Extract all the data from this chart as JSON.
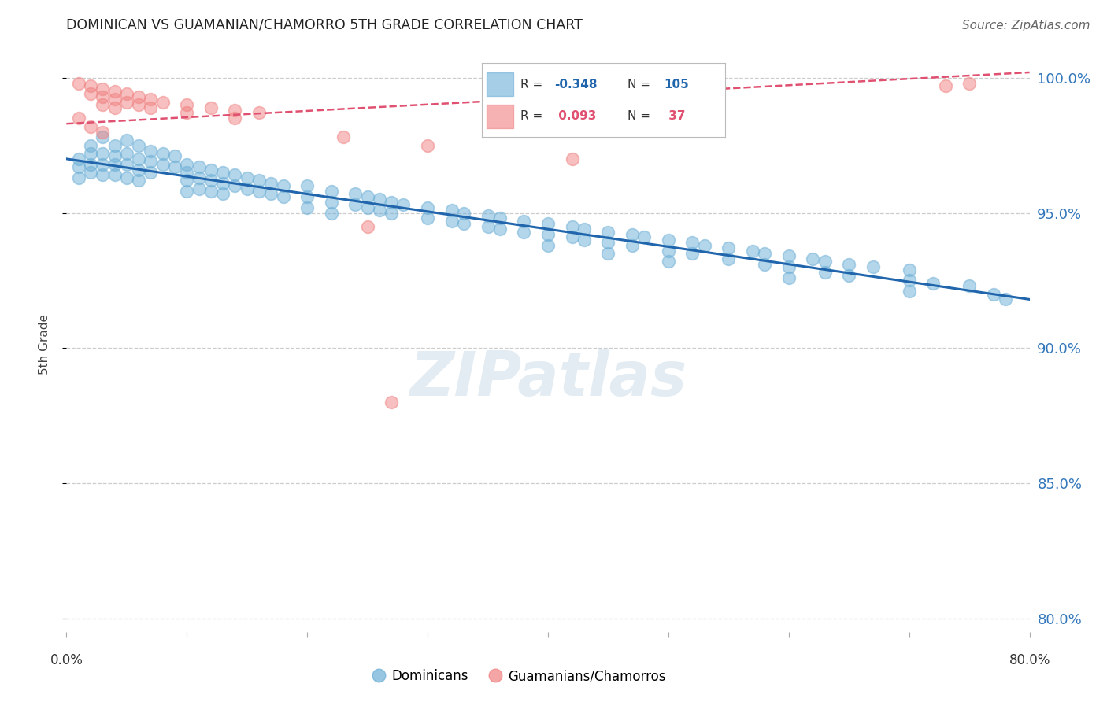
{
  "title": "DOMINICAN VS GUAMANIAN/CHAMORRO 5TH GRADE CORRELATION CHART",
  "source": "Source: ZipAtlas.com",
  "ylabel": "5th Grade",
  "ytick_labels": [
    "80.0%",
    "85.0%",
    "90.0%",
    "95.0%",
    "100.0%"
  ],
  "ytick_values": [
    0.8,
    0.85,
    0.9,
    0.95,
    1.0
  ],
  "xlim": [
    0.0,
    0.8
  ],
  "ylim": [
    0.795,
    1.008
  ],
  "blue_R": "-0.348",
  "blue_N": "105",
  "pink_R": "0.093",
  "pink_N": "37",
  "blue_color": "#6baed6",
  "pink_color": "#f08080",
  "blue_line_color": "#2166ac",
  "pink_line_color": "#e05070",
  "blue_scatter": [
    [
      0.02,
      0.975
    ],
    [
      0.02,
      0.972
    ],
    [
      0.02,
      0.968
    ],
    [
      0.02,
      0.965
    ],
    [
      0.03,
      0.978
    ],
    [
      0.03,
      0.972
    ],
    [
      0.03,
      0.968
    ],
    [
      0.03,
      0.964
    ],
    [
      0.04,
      0.975
    ],
    [
      0.04,
      0.971
    ],
    [
      0.04,
      0.968
    ],
    [
      0.04,
      0.964
    ],
    [
      0.05,
      0.977
    ],
    [
      0.05,
      0.972
    ],
    [
      0.05,
      0.968
    ],
    [
      0.05,
      0.963
    ],
    [
      0.06,
      0.975
    ],
    [
      0.06,
      0.97
    ],
    [
      0.06,
      0.966
    ],
    [
      0.06,
      0.962
    ],
    [
      0.07,
      0.973
    ],
    [
      0.07,
      0.969
    ],
    [
      0.07,
      0.965
    ],
    [
      0.08,
      0.972
    ],
    [
      0.08,
      0.968
    ],
    [
      0.09,
      0.971
    ],
    [
      0.09,
      0.967
    ],
    [
      0.01,
      0.97
    ],
    [
      0.01,
      0.967
    ],
    [
      0.01,
      0.963
    ],
    [
      0.1,
      0.968
    ],
    [
      0.1,
      0.965
    ],
    [
      0.1,
      0.962
    ],
    [
      0.1,
      0.958
    ],
    [
      0.11,
      0.967
    ],
    [
      0.11,
      0.963
    ],
    [
      0.11,
      0.959
    ],
    [
      0.12,
      0.966
    ],
    [
      0.12,
      0.962
    ],
    [
      0.12,
      0.958
    ],
    [
      0.13,
      0.965
    ],
    [
      0.13,
      0.961
    ],
    [
      0.13,
      0.957
    ],
    [
      0.14,
      0.964
    ],
    [
      0.14,
      0.96
    ],
    [
      0.15,
      0.963
    ],
    [
      0.15,
      0.959
    ],
    [
      0.16,
      0.962
    ],
    [
      0.16,
      0.958
    ],
    [
      0.17,
      0.961
    ],
    [
      0.17,
      0.957
    ],
    [
      0.18,
      0.96
    ],
    [
      0.18,
      0.956
    ],
    [
      0.2,
      0.96
    ],
    [
      0.2,
      0.956
    ],
    [
      0.2,
      0.952
    ],
    [
      0.22,
      0.958
    ],
    [
      0.22,
      0.954
    ],
    [
      0.22,
      0.95
    ],
    [
      0.24,
      0.957
    ],
    [
      0.24,
      0.953
    ],
    [
      0.25,
      0.956
    ],
    [
      0.25,
      0.952
    ],
    [
      0.26,
      0.955
    ],
    [
      0.26,
      0.951
    ],
    [
      0.27,
      0.954
    ],
    [
      0.27,
      0.95
    ],
    [
      0.28,
      0.953
    ],
    [
      0.3,
      0.952
    ],
    [
      0.3,
      0.948
    ],
    [
      0.32,
      0.951
    ],
    [
      0.32,
      0.947
    ],
    [
      0.33,
      0.95
    ],
    [
      0.33,
      0.946
    ],
    [
      0.35,
      0.949
    ],
    [
      0.35,
      0.945
    ],
    [
      0.36,
      0.948
    ],
    [
      0.36,
      0.944
    ],
    [
      0.38,
      0.947
    ],
    [
      0.38,
      0.943
    ],
    [
      0.4,
      0.946
    ],
    [
      0.4,
      0.942
    ],
    [
      0.4,
      0.938
    ],
    [
      0.42,
      0.945
    ],
    [
      0.42,
      0.941
    ],
    [
      0.43,
      0.944
    ],
    [
      0.43,
      0.94
    ],
    [
      0.45,
      0.943
    ],
    [
      0.45,
      0.939
    ],
    [
      0.45,
      0.935
    ],
    [
      0.47,
      0.942
    ],
    [
      0.47,
      0.938
    ],
    [
      0.48,
      0.941
    ],
    [
      0.5,
      0.94
    ],
    [
      0.5,
      0.936
    ],
    [
      0.5,
      0.932
    ],
    [
      0.52,
      0.939
    ],
    [
      0.52,
      0.935
    ],
    [
      0.53,
      0.938
    ],
    [
      0.55,
      0.937
    ],
    [
      0.55,
      0.933
    ],
    [
      0.57,
      0.936
    ],
    [
      0.58,
      0.935
    ],
    [
      0.58,
      0.931
    ],
    [
      0.6,
      0.934
    ],
    [
      0.6,
      0.93
    ],
    [
      0.6,
      0.926
    ],
    [
      0.62,
      0.933
    ],
    [
      0.63,
      0.932
    ],
    [
      0.63,
      0.928
    ],
    [
      0.65,
      0.931
    ],
    [
      0.65,
      0.927
    ],
    [
      0.67,
      0.93
    ],
    [
      0.7,
      0.929
    ],
    [
      0.7,
      0.925
    ],
    [
      0.7,
      0.921
    ],
    [
      0.72,
      0.924
    ],
    [
      0.75,
      0.923
    ],
    [
      0.77,
      0.92
    ],
    [
      0.78,
      0.918
    ]
  ],
  "pink_scatter": [
    [
      0.01,
      0.998
    ],
    [
      0.02,
      0.997
    ],
    [
      0.02,
      0.994
    ],
    [
      0.03,
      0.996
    ],
    [
      0.03,
      0.993
    ],
    [
      0.03,
      0.99
    ],
    [
      0.04,
      0.995
    ],
    [
      0.04,
      0.992
    ],
    [
      0.04,
      0.989
    ],
    [
      0.05,
      0.994
    ],
    [
      0.05,
      0.991
    ],
    [
      0.06,
      0.993
    ],
    [
      0.06,
      0.99
    ],
    [
      0.07,
      0.992
    ],
    [
      0.07,
      0.989
    ],
    [
      0.08,
      0.991
    ],
    [
      0.1,
      0.99
    ],
    [
      0.1,
      0.987
    ],
    [
      0.12,
      0.989
    ],
    [
      0.14,
      0.988
    ],
    [
      0.14,
      0.985
    ],
    [
      0.16,
      0.987
    ],
    [
      0.01,
      0.985
    ],
    [
      0.02,
      0.982
    ],
    [
      0.03,
      0.98
    ],
    [
      0.23,
      0.978
    ],
    [
      0.3,
      0.975
    ],
    [
      0.42,
      0.97
    ],
    [
      0.25,
      0.945
    ],
    [
      0.27,
      0.88
    ],
    [
      0.75,
      0.998
    ],
    [
      0.73,
      0.997
    ]
  ],
  "blue_trend_x": [
    0.0,
    0.8
  ],
  "blue_trend_y": [
    0.97,
    0.918
  ],
  "pink_trend_x": [
    0.0,
    0.8
  ],
  "pink_trend_y": [
    0.983,
    1.002
  ],
  "watermark": "ZIPatlas",
  "background_color": "#ffffff",
  "grid_color": "#cccccc",
  "legend_blue_label": "Dominicans",
  "legend_pink_label": "Guamanians/Chamorros"
}
